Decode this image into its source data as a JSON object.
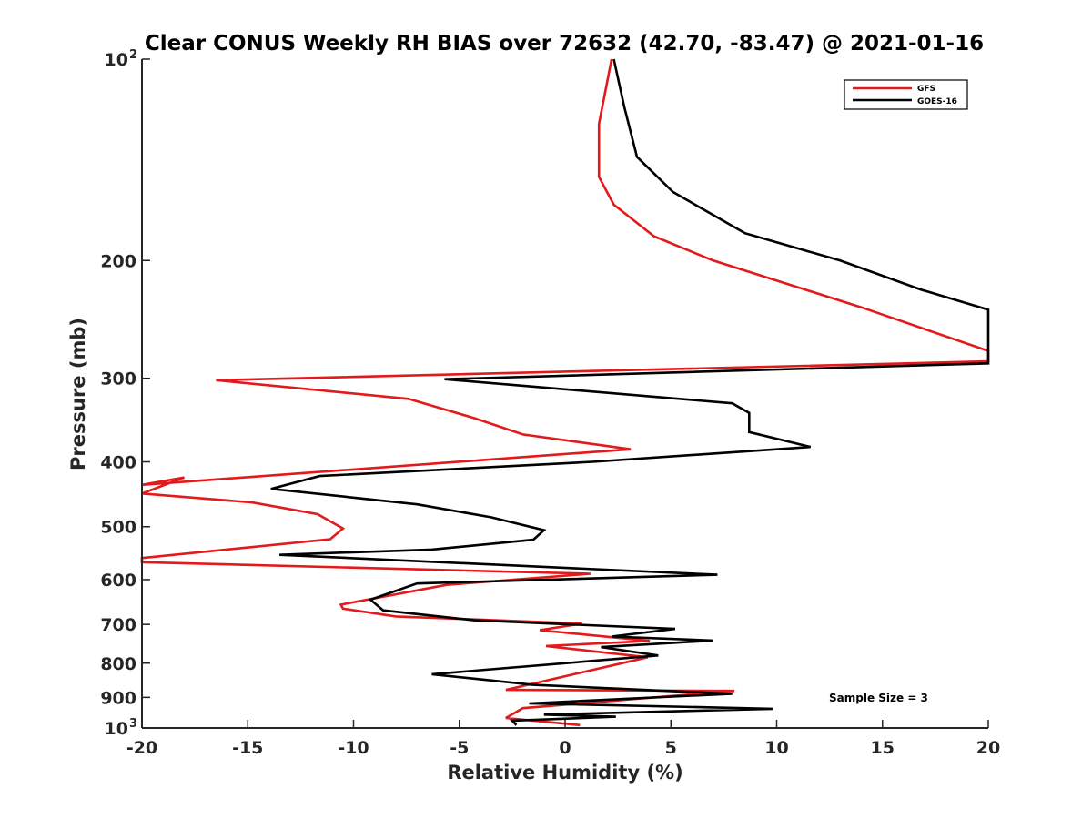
{
  "chart_data": {
    "type": "line",
    "title": "Clear CONUS Weekly RH BIAS over 72632 (42.70, -83.47) @ 2021-01-16",
    "xlabel": "Relative Humidity (%)",
    "ylabel": "Pressure (mb)",
    "xlim": [
      -20,
      20
    ],
    "ylim": [
      100,
      1000
    ],
    "y_scale": "log",
    "y_reversed": true,
    "grid": false,
    "legend_position": "top-right",
    "x_ticks": [
      "-20",
      "-15",
      "-10",
      "-5",
      "0",
      "5",
      "10",
      "15",
      "20"
    ],
    "y_ticks": [
      {
        "base": "10",
        "exp": "2"
      },
      {
        "base": "200",
        "exp": ""
      },
      {
        "base": "300",
        "exp": ""
      },
      {
        "base": "400",
        "exp": ""
      },
      {
        "base": "500",
        "exp": ""
      },
      {
        "base": "600",
        "exp": ""
      },
      {
        "base": "700",
        "exp": ""
      },
      {
        "base": "800",
        "exp": ""
      },
      {
        "base": "900",
        "exp": ""
      },
      {
        "base": "10",
        "exp": "3"
      }
    ],
    "annotation": "Sample Size = 3",
    "series": [
      {
        "name": "GFS",
        "color": "#e31a1c",
        "points": [
          [
            2.2,
            100
          ],
          [
            1.6,
            125
          ],
          [
            1.6,
            150
          ],
          [
            2.3,
            165
          ],
          [
            4.2,
            184
          ],
          [
            7.0,
            200
          ],
          [
            14.0,
            235
          ],
          [
            20.0,
            273
          ],
          [
            20.0,
            283
          ],
          [
            -16.5,
            302
          ],
          [
            -7.4,
            322
          ],
          [
            -4.3,
            344
          ],
          [
            -2.0,
            364
          ],
          [
            3.1,
            383
          ],
          [
            -20.0,
            433
          ],
          [
            -18.0,
            422
          ],
          [
            -20.0,
            446
          ],
          [
            -14.8,
            460
          ],
          [
            -11.7,
            479
          ],
          [
            -10.5,
            503
          ],
          [
            -11.1,
            522
          ],
          [
            -20.0,
            557
          ],
          [
            -20.0,
            565
          ],
          [
            1.2,
            588
          ],
          [
            -5.6,
            611
          ],
          [
            -10.6,
            654
          ],
          [
            -10.5,
            663
          ],
          [
            -8.0,
            681
          ],
          [
            0.8,
            698
          ],
          [
            -1.2,
            714
          ],
          [
            4.0,
            741
          ],
          [
            -0.9,
            754
          ],
          [
            3.9,
            784
          ],
          [
            -2.8,
            877
          ],
          [
            8.0,
            880
          ],
          [
            -2.0,
            934
          ],
          [
            -2.8,
            966
          ],
          [
            0.7,
            990
          ]
        ]
      },
      {
        "name": "GOES-16",
        "color": "#000000",
        "points": [
          [
            2.3,
            100
          ],
          [
            2.8,
            118
          ],
          [
            3.4,
            140
          ],
          [
            5.1,
            158
          ],
          [
            8.5,
            182
          ],
          [
            13.0,
            200
          ],
          [
            16.8,
            221
          ],
          [
            20.0,
            237
          ],
          [
            20.0,
            285
          ],
          [
            -5.7,
            301
          ],
          [
            7.9,
            327
          ],
          [
            8.7,
            338
          ],
          [
            8.7,
            361
          ],
          [
            11.6,
            380
          ],
          [
            1.3,
            400
          ],
          [
            -11.6,
            420
          ],
          [
            -13.9,
            439
          ],
          [
            -7.0,
            463
          ],
          [
            -3.5,
            484
          ],
          [
            -1.0,
            506
          ],
          [
            -1.5,
            523
          ],
          [
            -6.3,
            541
          ],
          [
            -13.5,
            551
          ],
          [
            7.2,
            590
          ],
          [
            -7.0,
            608
          ],
          [
            -9.2,
            643
          ],
          [
            -8.6,
            667
          ],
          [
            -4.3,
            690
          ],
          [
            5.2,
            711
          ],
          [
            2.2,
            730
          ],
          [
            7.0,
            740
          ],
          [
            1.7,
            757
          ],
          [
            4.4,
            779
          ],
          [
            -6.3,
            831
          ],
          [
            -1.5,
            862
          ],
          [
            7.9,
            889
          ],
          [
            -1.7,
            919
          ],
          [
            9.8,
            936
          ],
          [
            -1.0,
            955
          ],
          [
            2.4,
            962
          ],
          [
            -2.5,
            975
          ],
          [
            -2.3,
            990
          ]
        ]
      }
    ]
  }
}
